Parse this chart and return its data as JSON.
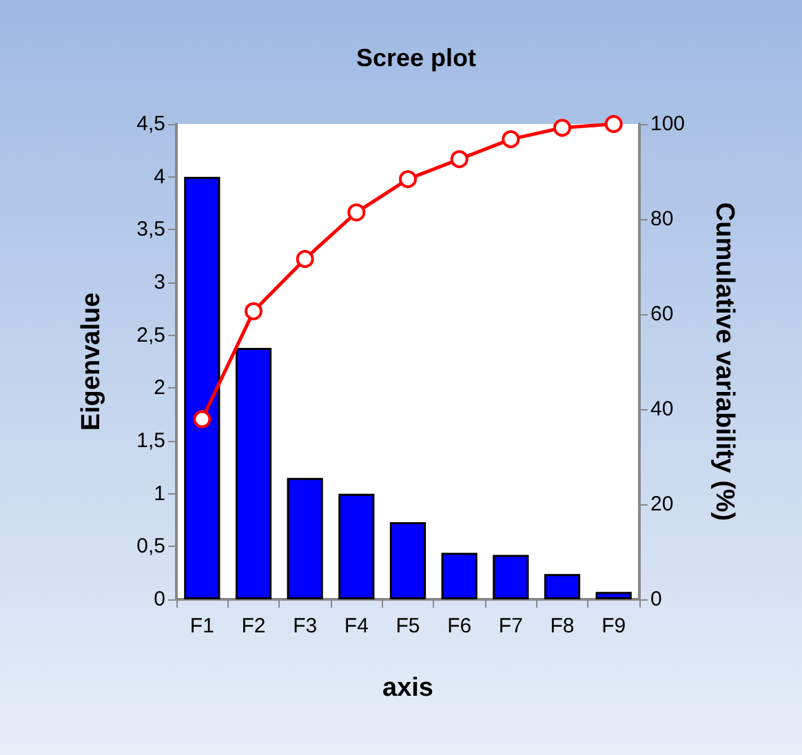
{
  "chart_data": {
    "type": "bar",
    "title": "Scree plot",
    "xlabel": "axis",
    "ylabel": "Eigenvalue",
    "y2label": "Cumulative variability (%)",
    "categories": [
      "F1",
      "F2",
      "F3",
      "F4",
      "F5",
      "F6",
      "F7",
      "F8",
      "F9"
    ],
    "series": [
      {
        "color": "#0000ff",
        "values": [
          4.0,
          2.38,
          1.15,
          1.0,
          0.73,
          0.44,
          0.42,
          0.24,
          0.07
        ]
      },
      {
        "type": "line",
        "axis": "y2",
        "color": "#ff0000",
        "marker": "circle",
        "values": [
          37.9,
          60.6,
          71.6,
          81.4,
          88.4,
          92.6,
          96.8,
          99.2,
          100
        ]
      }
    ],
    "ylim": [
      0,
      4.5
    ],
    "yticks": [
      0,
      {
        "value": 0.5,
        "label": "0,5"
      },
      1,
      {
        "value": 1.5,
        "label": "1,5"
      },
      2,
      {
        "value": 2.5,
        "label": "2,5"
      },
      3,
      {
        "value": 3.5,
        "label": "3,5"
      },
      4,
      {
        "value": 4.5,
        "label": "4,5"
      }
    ],
    "y2lim": [
      0,
      100
    ],
    "y2ticks": [
      0,
      20,
      40,
      60,
      80,
      100
    ],
    "grid": false
  }
}
